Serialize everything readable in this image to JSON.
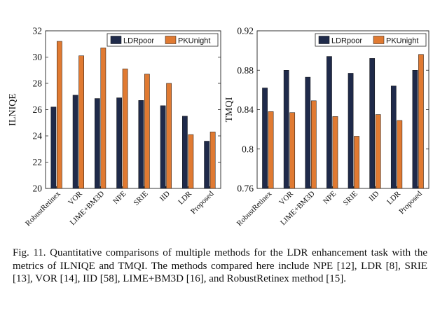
{
  "chart_data": [
    {
      "type": "bar",
      "categories": [
        "RobustRetinex",
        "VOR",
        "LIME+BM3D",
        "NPE",
        "SRIE",
        "IID",
        "LDR",
        "Proposed"
      ],
      "series": [
        {
          "name": "LDRpoor",
          "values": [
            26.2,
            27.1,
            26.85,
            26.9,
            26.7,
            26.3,
            25.5,
            23.6
          ]
        },
        {
          "name": "PKUnight",
          "values": [
            31.2,
            30.1,
            30.7,
            29.1,
            28.7,
            28.0,
            24.1,
            24.3
          ]
        }
      ],
      "ylabel": "ILNIQE",
      "ylim": [
        20,
        32
      ],
      "yticks": [
        "20",
        "22",
        "24",
        "26",
        "28",
        "30",
        "32"
      ],
      "ytick_values": [
        20,
        22,
        24,
        26,
        28,
        30,
        32
      ],
      "legend_position": "top-right",
      "grid": false
    },
    {
      "type": "bar",
      "categories": [
        "RobustRetinex",
        "VOR",
        "LIME+BM3D",
        "NPE",
        "SRIE",
        "IID",
        "LDR",
        "Proposed"
      ],
      "series": [
        {
          "name": "LDRpoor",
          "values": [
            0.862,
            0.88,
            0.873,
            0.894,
            0.877,
            0.892,
            0.864,
            0.88
          ]
        },
        {
          "name": "PKUnight",
          "values": [
            0.838,
            0.837,
            0.849,
            0.833,
            0.813,
            0.835,
            0.829,
            0.896
          ]
        }
      ],
      "ylabel": "TMQI",
      "ylim": [
        0.76,
        0.92
      ],
      "yticks": [
        "0.76",
        "0.8",
        "0.84",
        "0.88",
        "0.92"
      ],
      "ytick_values": [
        0.76,
        0.8,
        0.84,
        0.88,
        0.92
      ],
      "legend_position": "top-right",
      "grid": false
    }
  ],
  "colors": {
    "LDRpoor": "#1f2a4a",
    "PKUnight": "#e07a32"
  },
  "caption": "Fig. 11.    Quantitative comparisons of multiple methods for the LDR enhancement task with the metrics of ILNIQE and TMQI. The methods compared here include NPE [12], LDR [8], SRIE [13], VOR [14], IID [58], LIME+BM3D [16], and RobustRetinex method [15]."
}
